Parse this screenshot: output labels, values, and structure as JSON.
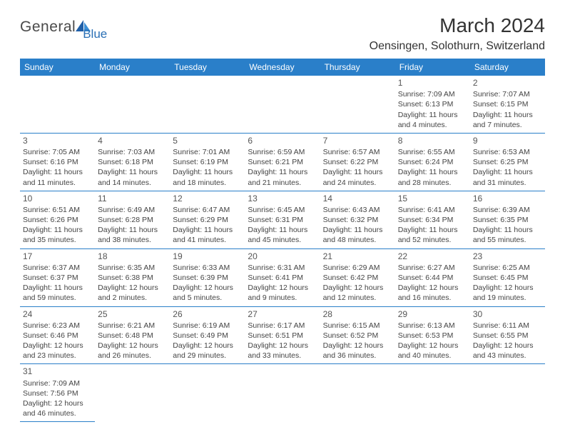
{
  "logo": {
    "main": "General",
    "sub": "Blue",
    "shape_color": "#2a6fb5"
  },
  "title": "March 2024",
  "location": "Oensingen, Solothurn, Switzerland",
  "header_bg": "#2a7fc9",
  "header_fg": "#ffffff",
  "border_color": "#2a7fc9",
  "day_headers": [
    "Sunday",
    "Monday",
    "Tuesday",
    "Wednesday",
    "Thursday",
    "Friday",
    "Saturday"
  ],
  "weeks": [
    [
      null,
      null,
      null,
      null,
      null,
      {
        "d": "1",
        "sr": "Sunrise: 7:09 AM",
        "ss": "Sunset: 6:13 PM",
        "dl1": "Daylight: 11 hours",
        "dl2": "and 4 minutes."
      },
      {
        "d": "2",
        "sr": "Sunrise: 7:07 AM",
        "ss": "Sunset: 6:15 PM",
        "dl1": "Daylight: 11 hours",
        "dl2": "and 7 minutes."
      }
    ],
    [
      {
        "d": "3",
        "sr": "Sunrise: 7:05 AM",
        "ss": "Sunset: 6:16 PM",
        "dl1": "Daylight: 11 hours",
        "dl2": "and 11 minutes."
      },
      {
        "d": "4",
        "sr": "Sunrise: 7:03 AM",
        "ss": "Sunset: 6:18 PM",
        "dl1": "Daylight: 11 hours",
        "dl2": "and 14 minutes."
      },
      {
        "d": "5",
        "sr": "Sunrise: 7:01 AM",
        "ss": "Sunset: 6:19 PM",
        "dl1": "Daylight: 11 hours",
        "dl2": "and 18 minutes."
      },
      {
        "d": "6",
        "sr": "Sunrise: 6:59 AM",
        "ss": "Sunset: 6:21 PM",
        "dl1": "Daylight: 11 hours",
        "dl2": "and 21 minutes."
      },
      {
        "d": "7",
        "sr": "Sunrise: 6:57 AM",
        "ss": "Sunset: 6:22 PM",
        "dl1": "Daylight: 11 hours",
        "dl2": "and 24 minutes."
      },
      {
        "d": "8",
        "sr": "Sunrise: 6:55 AM",
        "ss": "Sunset: 6:24 PM",
        "dl1": "Daylight: 11 hours",
        "dl2": "and 28 minutes."
      },
      {
        "d": "9",
        "sr": "Sunrise: 6:53 AM",
        "ss": "Sunset: 6:25 PM",
        "dl1": "Daylight: 11 hours",
        "dl2": "and 31 minutes."
      }
    ],
    [
      {
        "d": "10",
        "sr": "Sunrise: 6:51 AM",
        "ss": "Sunset: 6:26 PM",
        "dl1": "Daylight: 11 hours",
        "dl2": "and 35 minutes."
      },
      {
        "d": "11",
        "sr": "Sunrise: 6:49 AM",
        "ss": "Sunset: 6:28 PM",
        "dl1": "Daylight: 11 hours",
        "dl2": "and 38 minutes."
      },
      {
        "d": "12",
        "sr": "Sunrise: 6:47 AM",
        "ss": "Sunset: 6:29 PM",
        "dl1": "Daylight: 11 hours",
        "dl2": "and 41 minutes."
      },
      {
        "d": "13",
        "sr": "Sunrise: 6:45 AM",
        "ss": "Sunset: 6:31 PM",
        "dl1": "Daylight: 11 hours",
        "dl2": "and 45 minutes."
      },
      {
        "d": "14",
        "sr": "Sunrise: 6:43 AM",
        "ss": "Sunset: 6:32 PM",
        "dl1": "Daylight: 11 hours",
        "dl2": "and 48 minutes."
      },
      {
        "d": "15",
        "sr": "Sunrise: 6:41 AM",
        "ss": "Sunset: 6:34 PM",
        "dl1": "Daylight: 11 hours",
        "dl2": "and 52 minutes."
      },
      {
        "d": "16",
        "sr": "Sunrise: 6:39 AM",
        "ss": "Sunset: 6:35 PM",
        "dl1": "Daylight: 11 hours",
        "dl2": "and 55 minutes."
      }
    ],
    [
      {
        "d": "17",
        "sr": "Sunrise: 6:37 AM",
        "ss": "Sunset: 6:37 PM",
        "dl1": "Daylight: 11 hours",
        "dl2": "and 59 minutes."
      },
      {
        "d": "18",
        "sr": "Sunrise: 6:35 AM",
        "ss": "Sunset: 6:38 PM",
        "dl1": "Daylight: 12 hours",
        "dl2": "and 2 minutes."
      },
      {
        "d": "19",
        "sr": "Sunrise: 6:33 AM",
        "ss": "Sunset: 6:39 PM",
        "dl1": "Daylight: 12 hours",
        "dl2": "and 5 minutes."
      },
      {
        "d": "20",
        "sr": "Sunrise: 6:31 AM",
        "ss": "Sunset: 6:41 PM",
        "dl1": "Daylight: 12 hours",
        "dl2": "and 9 minutes."
      },
      {
        "d": "21",
        "sr": "Sunrise: 6:29 AM",
        "ss": "Sunset: 6:42 PM",
        "dl1": "Daylight: 12 hours",
        "dl2": "and 12 minutes."
      },
      {
        "d": "22",
        "sr": "Sunrise: 6:27 AM",
        "ss": "Sunset: 6:44 PM",
        "dl1": "Daylight: 12 hours",
        "dl2": "and 16 minutes."
      },
      {
        "d": "23",
        "sr": "Sunrise: 6:25 AM",
        "ss": "Sunset: 6:45 PM",
        "dl1": "Daylight: 12 hours",
        "dl2": "and 19 minutes."
      }
    ],
    [
      {
        "d": "24",
        "sr": "Sunrise: 6:23 AM",
        "ss": "Sunset: 6:46 PM",
        "dl1": "Daylight: 12 hours",
        "dl2": "and 23 minutes."
      },
      {
        "d": "25",
        "sr": "Sunrise: 6:21 AM",
        "ss": "Sunset: 6:48 PM",
        "dl1": "Daylight: 12 hours",
        "dl2": "and 26 minutes."
      },
      {
        "d": "26",
        "sr": "Sunrise: 6:19 AM",
        "ss": "Sunset: 6:49 PM",
        "dl1": "Daylight: 12 hours",
        "dl2": "and 29 minutes."
      },
      {
        "d": "27",
        "sr": "Sunrise: 6:17 AM",
        "ss": "Sunset: 6:51 PM",
        "dl1": "Daylight: 12 hours",
        "dl2": "and 33 minutes."
      },
      {
        "d": "28",
        "sr": "Sunrise: 6:15 AM",
        "ss": "Sunset: 6:52 PM",
        "dl1": "Daylight: 12 hours",
        "dl2": "and 36 minutes."
      },
      {
        "d": "29",
        "sr": "Sunrise: 6:13 AM",
        "ss": "Sunset: 6:53 PM",
        "dl1": "Daylight: 12 hours",
        "dl2": "and 40 minutes."
      },
      {
        "d": "30",
        "sr": "Sunrise: 6:11 AM",
        "ss": "Sunset: 6:55 PM",
        "dl1": "Daylight: 12 hours",
        "dl2": "and 43 minutes."
      }
    ],
    [
      {
        "d": "31",
        "sr": "Sunrise: 7:09 AM",
        "ss": "Sunset: 7:56 PM",
        "dl1": "Daylight: 12 hours",
        "dl2": "and 46 minutes."
      },
      null,
      null,
      null,
      null,
      null,
      null
    ]
  ]
}
